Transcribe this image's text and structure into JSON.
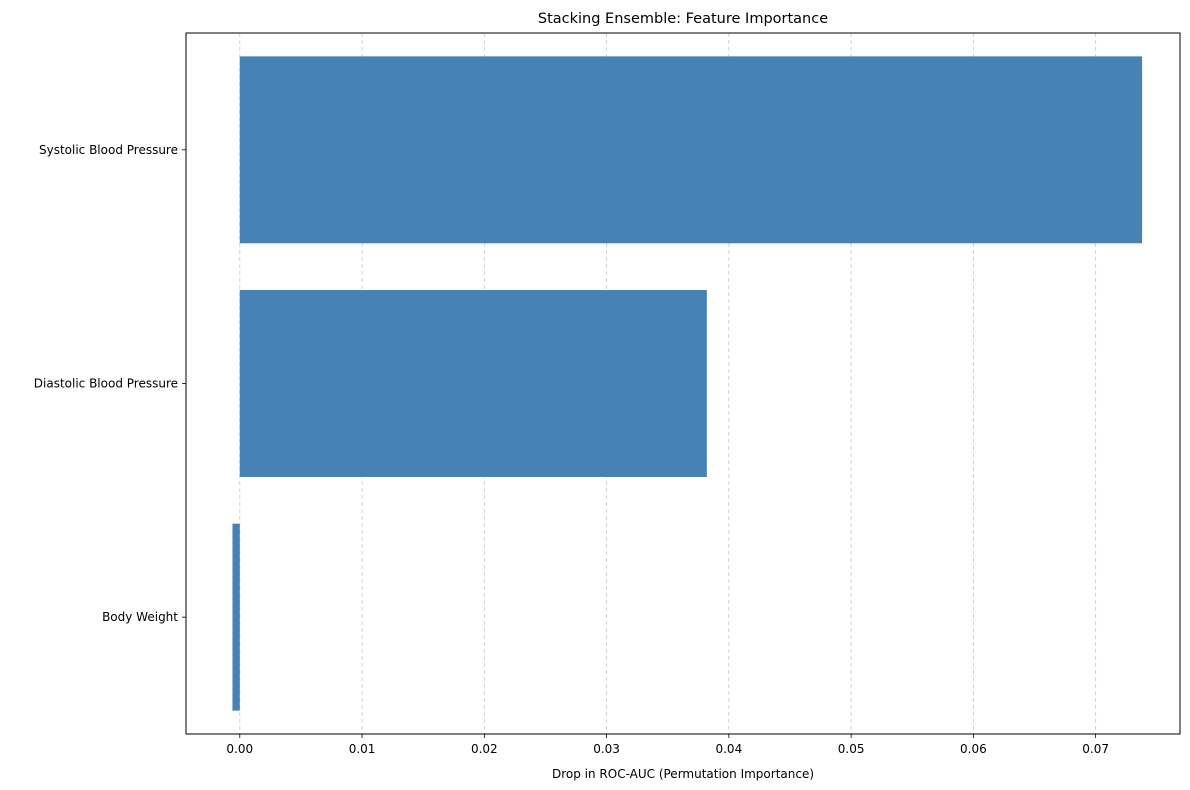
{
  "chart_data": {
    "type": "bar",
    "orientation": "horizontal",
    "title": "Stacking Ensemble: Feature Importance",
    "xlabel": "Drop in ROC-AUC (Permutation Importance)",
    "ylabel": "",
    "categories": [
      "Systolic Blood Pressure",
      "Diastolic Blood Pressure",
      "Body Weight"
    ],
    "values": [
      0.0738,
      0.0382,
      -0.0006
    ],
    "xlim": [
      -0.0044,
      0.0769
    ],
    "xticks": [
      0.0,
      0.01,
      0.02,
      0.03,
      0.04,
      0.05,
      0.06,
      0.07
    ],
    "xtick_labels": [
      "0.00",
      "0.01",
      "0.02",
      "0.03",
      "0.04",
      "0.05",
      "0.06",
      "0.07"
    ],
    "grid": "x-dashed",
    "legend": "none",
    "bar_color": "#4682b4",
    "grid_color": "#c8c8c8"
  }
}
